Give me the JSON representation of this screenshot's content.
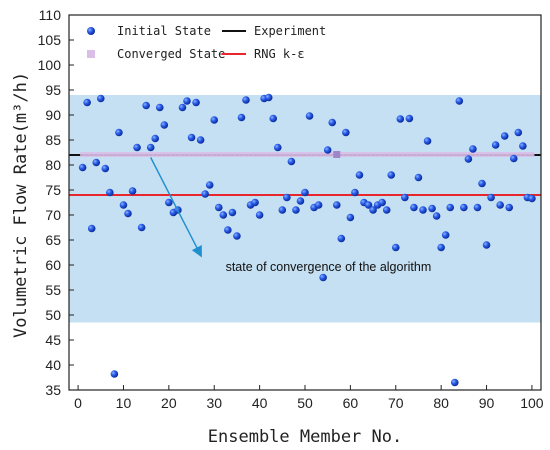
{
  "chart_data": {
    "type": "scatter",
    "xlabel": "Ensemble Member No.",
    "ylabel": "Volumetric Flow Rate(m³/h)",
    "xlim": [
      -2,
      102
    ],
    "ylim": [
      35,
      110
    ],
    "x_ticks": [
      0,
      10,
      20,
      30,
      40,
      50,
      60,
      70,
      80,
      90,
      100
    ],
    "y_ticks": [
      35,
      40,
      45,
      50,
      55,
      60,
      65,
      70,
      75,
      80,
      85,
      90,
      95,
      100,
      105,
      110
    ],
    "band": {
      "y_min": 48.5,
      "y_max": 94,
      "color": "#c5e0f2"
    },
    "reference_lines": [
      {
        "name": "Experiment",
        "y": 82,
        "color": "#111111"
      },
      {
        "name": "RNG k-ε",
        "y": 74,
        "color": "#e8262b"
      }
    ],
    "series": [
      {
        "name": "Initial State",
        "marker": "circle",
        "color": "#1a4fd6",
        "points": [
          [
            1,
            79.5
          ],
          [
            2,
            92.5
          ],
          [
            3,
            67.3
          ],
          [
            4,
            80.5
          ],
          [
            5,
            93.3
          ],
          [
            6,
            79.3
          ],
          [
            7,
            74.5
          ],
          [
            8,
            38.2
          ],
          [
            9,
            86.5
          ],
          [
            10,
            72
          ],
          [
            11,
            70.3
          ],
          [
            12,
            74.8
          ],
          [
            13,
            83.5
          ],
          [
            14,
            67.5
          ],
          [
            15,
            91.9
          ],
          [
            16,
            83.5
          ],
          [
            17,
            85.3
          ],
          [
            18,
            91.5
          ],
          [
            19,
            88
          ],
          [
            20,
            72.5
          ],
          [
            21,
            70.5
          ],
          [
            22,
            71
          ],
          [
            23,
            91.5
          ],
          [
            24,
            92.8
          ],
          [
            25,
            85.5
          ],
          [
            26,
            92.5
          ],
          [
            27,
            85
          ],
          [
            28,
            74.2
          ],
          [
            29,
            76
          ],
          [
            30,
            89
          ],
          [
            31,
            71.5
          ],
          [
            32,
            70
          ],
          [
            33,
            67
          ],
          [
            34,
            70.5
          ],
          [
            35,
            65.8
          ],
          [
            36,
            89.5
          ],
          [
            37,
            93
          ],
          [
            38,
            72
          ],
          [
            39,
            72.5
          ],
          [
            40,
            70
          ],
          [
            41,
            93.3
          ],
          [
            42,
            93.5
          ],
          [
            43,
            89.3
          ],
          [
            44,
            83.5
          ],
          [
            45,
            71
          ],
          [
            46,
            73.5
          ],
          [
            47,
            80.7
          ],
          [
            48,
            71
          ],
          [
            49,
            72.8
          ],
          [
            50,
            74.5
          ],
          [
            51,
            89.8
          ],
          [
            52,
            71.5
          ],
          [
            53,
            72
          ],
          [
            54,
            57.5
          ],
          [
            55,
            83
          ],
          [
            56,
            88.5
          ],
          [
            57,
            72
          ],
          [
            58,
            65.3
          ],
          [
            59,
            86.5
          ],
          [
            60,
            69.5
          ],
          [
            61,
            74.5
          ],
          [
            62,
            78
          ],
          [
            63,
            72.5
          ],
          [
            64,
            72
          ],
          [
            65,
            71
          ],
          [
            66,
            72
          ],
          [
            67,
            72.5
          ],
          [
            68,
            71
          ],
          [
            69,
            78
          ],
          [
            70,
            63.5
          ],
          [
            71,
            89.2
          ],
          [
            72,
            73.5
          ],
          [
            73,
            89.3
          ],
          [
            74,
            71.5
          ],
          [
            75,
            77.5
          ],
          [
            76,
            71
          ],
          [
            77,
            84.8
          ],
          [
            78,
            71.3
          ],
          [
            79,
            69.8
          ],
          [
            80,
            63.5
          ],
          [
            81,
            66
          ],
          [
            82,
            71.5
          ],
          [
            83,
            36.5
          ],
          [
            84,
            92.8
          ],
          [
            85,
            71.5
          ],
          [
            86,
            81.2
          ],
          [
            87,
            83.2
          ],
          [
            88,
            71.5
          ],
          [
            89,
            76.3
          ],
          [
            90,
            64
          ],
          [
            91,
            73.5
          ],
          [
            92,
            84
          ],
          [
            93,
            72
          ],
          [
            94,
            85.8
          ],
          [
            95,
            71.5
          ],
          [
            96,
            81.3
          ],
          [
            97,
            86.5
          ],
          [
            98,
            83.8
          ],
          [
            99,
            73.5
          ],
          [
            100,
            73.3
          ]
        ]
      },
      {
        "name": "Converged State",
        "marker": "square",
        "color": "#d9bfe8",
        "x_range": [
          1,
          100
        ],
        "y": 82.1,
        "highlight": {
          "x": 57,
          "color": "#9f86c9"
        }
      }
    ],
    "legend": {
      "placement": "top",
      "entries": [
        "Initial State",
        "Experiment",
        "Converged State",
        "RNG k-ε"
      ]
    },
    "annotation": {
      "text": "state of convergence of the algorithm",
      "arrow_from": [
        16,
        81.5
      ],
      "arrow_to": [
        27,
        62
      ]
    }
  }
}
